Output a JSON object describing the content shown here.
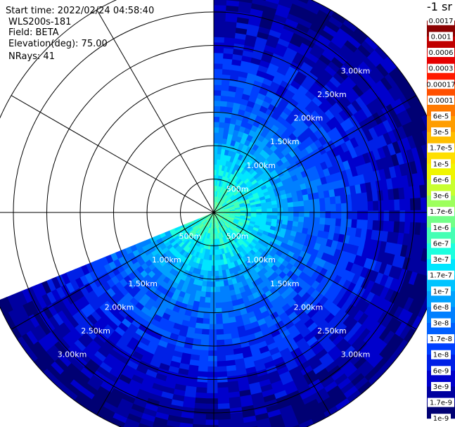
{
  "info": {
    "start_time": "Start time: 2022/02/24 04:58:40",
    "instrument": "WLS200s-181",
    "field": "Field: BETA",
    "elevation": "Elevation(deg): 75.00",
    "nrays": "NRays: 41"
  },
  "colors": {
    "background": "#ffffff",
    "grid": "#000000",
    "range_label": "#ffffff"
  },
  "chart_data": {
    "type": "heatmap",
    "subtype": "polar-ppi",
    "field": "BETA",
    "range_unit": "km",
    "max_range_km": 3.5,
    "sector_deg": [
      0,
      247.5
    ],
    "range_rings_km": [
      0.5,
      1.0,
      1.5,
      2.0,
      2.5,
      3.0,
      3.5
    ],
    "spoke_angles_deg": [
      0,
      30,
      60,
      90,
      120,
      150,
      180,
      210,
      240,
      270,
      300,
      330
    ],
    "range_labels": {
      "ne": [
        {
          "r": 0.5,
          "text": "500m"
        },
        {
          "r": 1.0,
          "text": "1.00km"
        },
        {
          "r": 1.5,
          "text": "1.50km"
        },
        {
          "r": 2.0,
          "text": "2.00km"
        },
        {
          "r": 2.5,
          "text": "2.50km"
        },
        {
          "r": 3.0,
          "text": "3.00km"
        }
      ],
      "se": [
        {
          "r": 0.5,
          "text": "500m"
        },
        {
          "r": 1.0,
          "text": "1.00km"
        },
        {
          "r": 1.5,
          "text": "1.50km"
        },
        {
          "r": 2.0,
          "text": "2.00km"
        },
        {
          "r": 2.5,
          "text": "2.50km"
        },
        {
          "r": 3.0,
          "text": "3.00km"
        }
      ],
      "sw": [
        {
          "r": 0.5,
          "text": "500m"
        },
        {
          "r": 1.0,
          "text": "1.00km"
        },
        {
          "r": 1.5,
          "text": "1.50km"
        },
        {
          "r": 2.0,
          "text": "2.00km"
        },
        {
          "r": 2.5,
          "text": "2.50km"
        },
        {
          "r": 3.0,
          "text": "3.00km"
        }
      ]
    },
    "radial_profile": [
      {
        "r_km": 0.0,
        "log10": -6.0
      },
      {
        "r_km": 0.5,
        "log10": -6.5
      },
      {
        "r_km": 1.0,
        "log10": -7.1
      },
      {
        "r_km": 1.5,
        "log10": -7.6
      },
      {
        "r_km": 2.0,
        "log10": -7.95
      },
      {
        "r_km": 2.5,
        "log10": -8.3
      },
      {
        "r_km": 3.0,
        "log10": -8.6
      },
      {
        "r_km": 3.5,
        "log10": -8.8
      }
    ],
    "colorbar": {
      "title": "-1 sr",
      "labels": [
        "0.0017",
        "0.001",
        "0.0006",
        "0.0003",
        "0.00017",
        "0.0001",
        "6e-5",
        "3e-5",
        "1.7e-5",
        "1e-5",
        "6e-6",
        "3e-6",
        "1.7e-6",
        "1e-6",
        "6e-7",
        "3e-7",
        "1.7e-7",
        "1e-7",
        "6e-8",
        "3e-8",
        "1.7e-8",
        "1e-8",
        "6e-9",
        "3e-9",
        "1.7e-9",
        "1e-9"
      ],
      "colors": [
        "#8b0000",
        "#c00000",
        "#e60000",
        "#ff1a00",
        "#ff5000",
        "#ff7a00",
        "#ff9d00",
        "#ffbe00",
        "#ffdf00",
        "#f0f500",
        "#c8ff30",
        "#9dff5c",
        "#72ff88",
        "#44ffb4",
        "#1cffde",
        "#00e6ff",
        "#00c4ff",
        "#00a2ff",
        "#0080ff",
        "#0060ff",
        "#0040ff",
        "#0020e6",
        "#0000cc",
        "#00009f",
        "#000073"
      ]
    }
  }
}
